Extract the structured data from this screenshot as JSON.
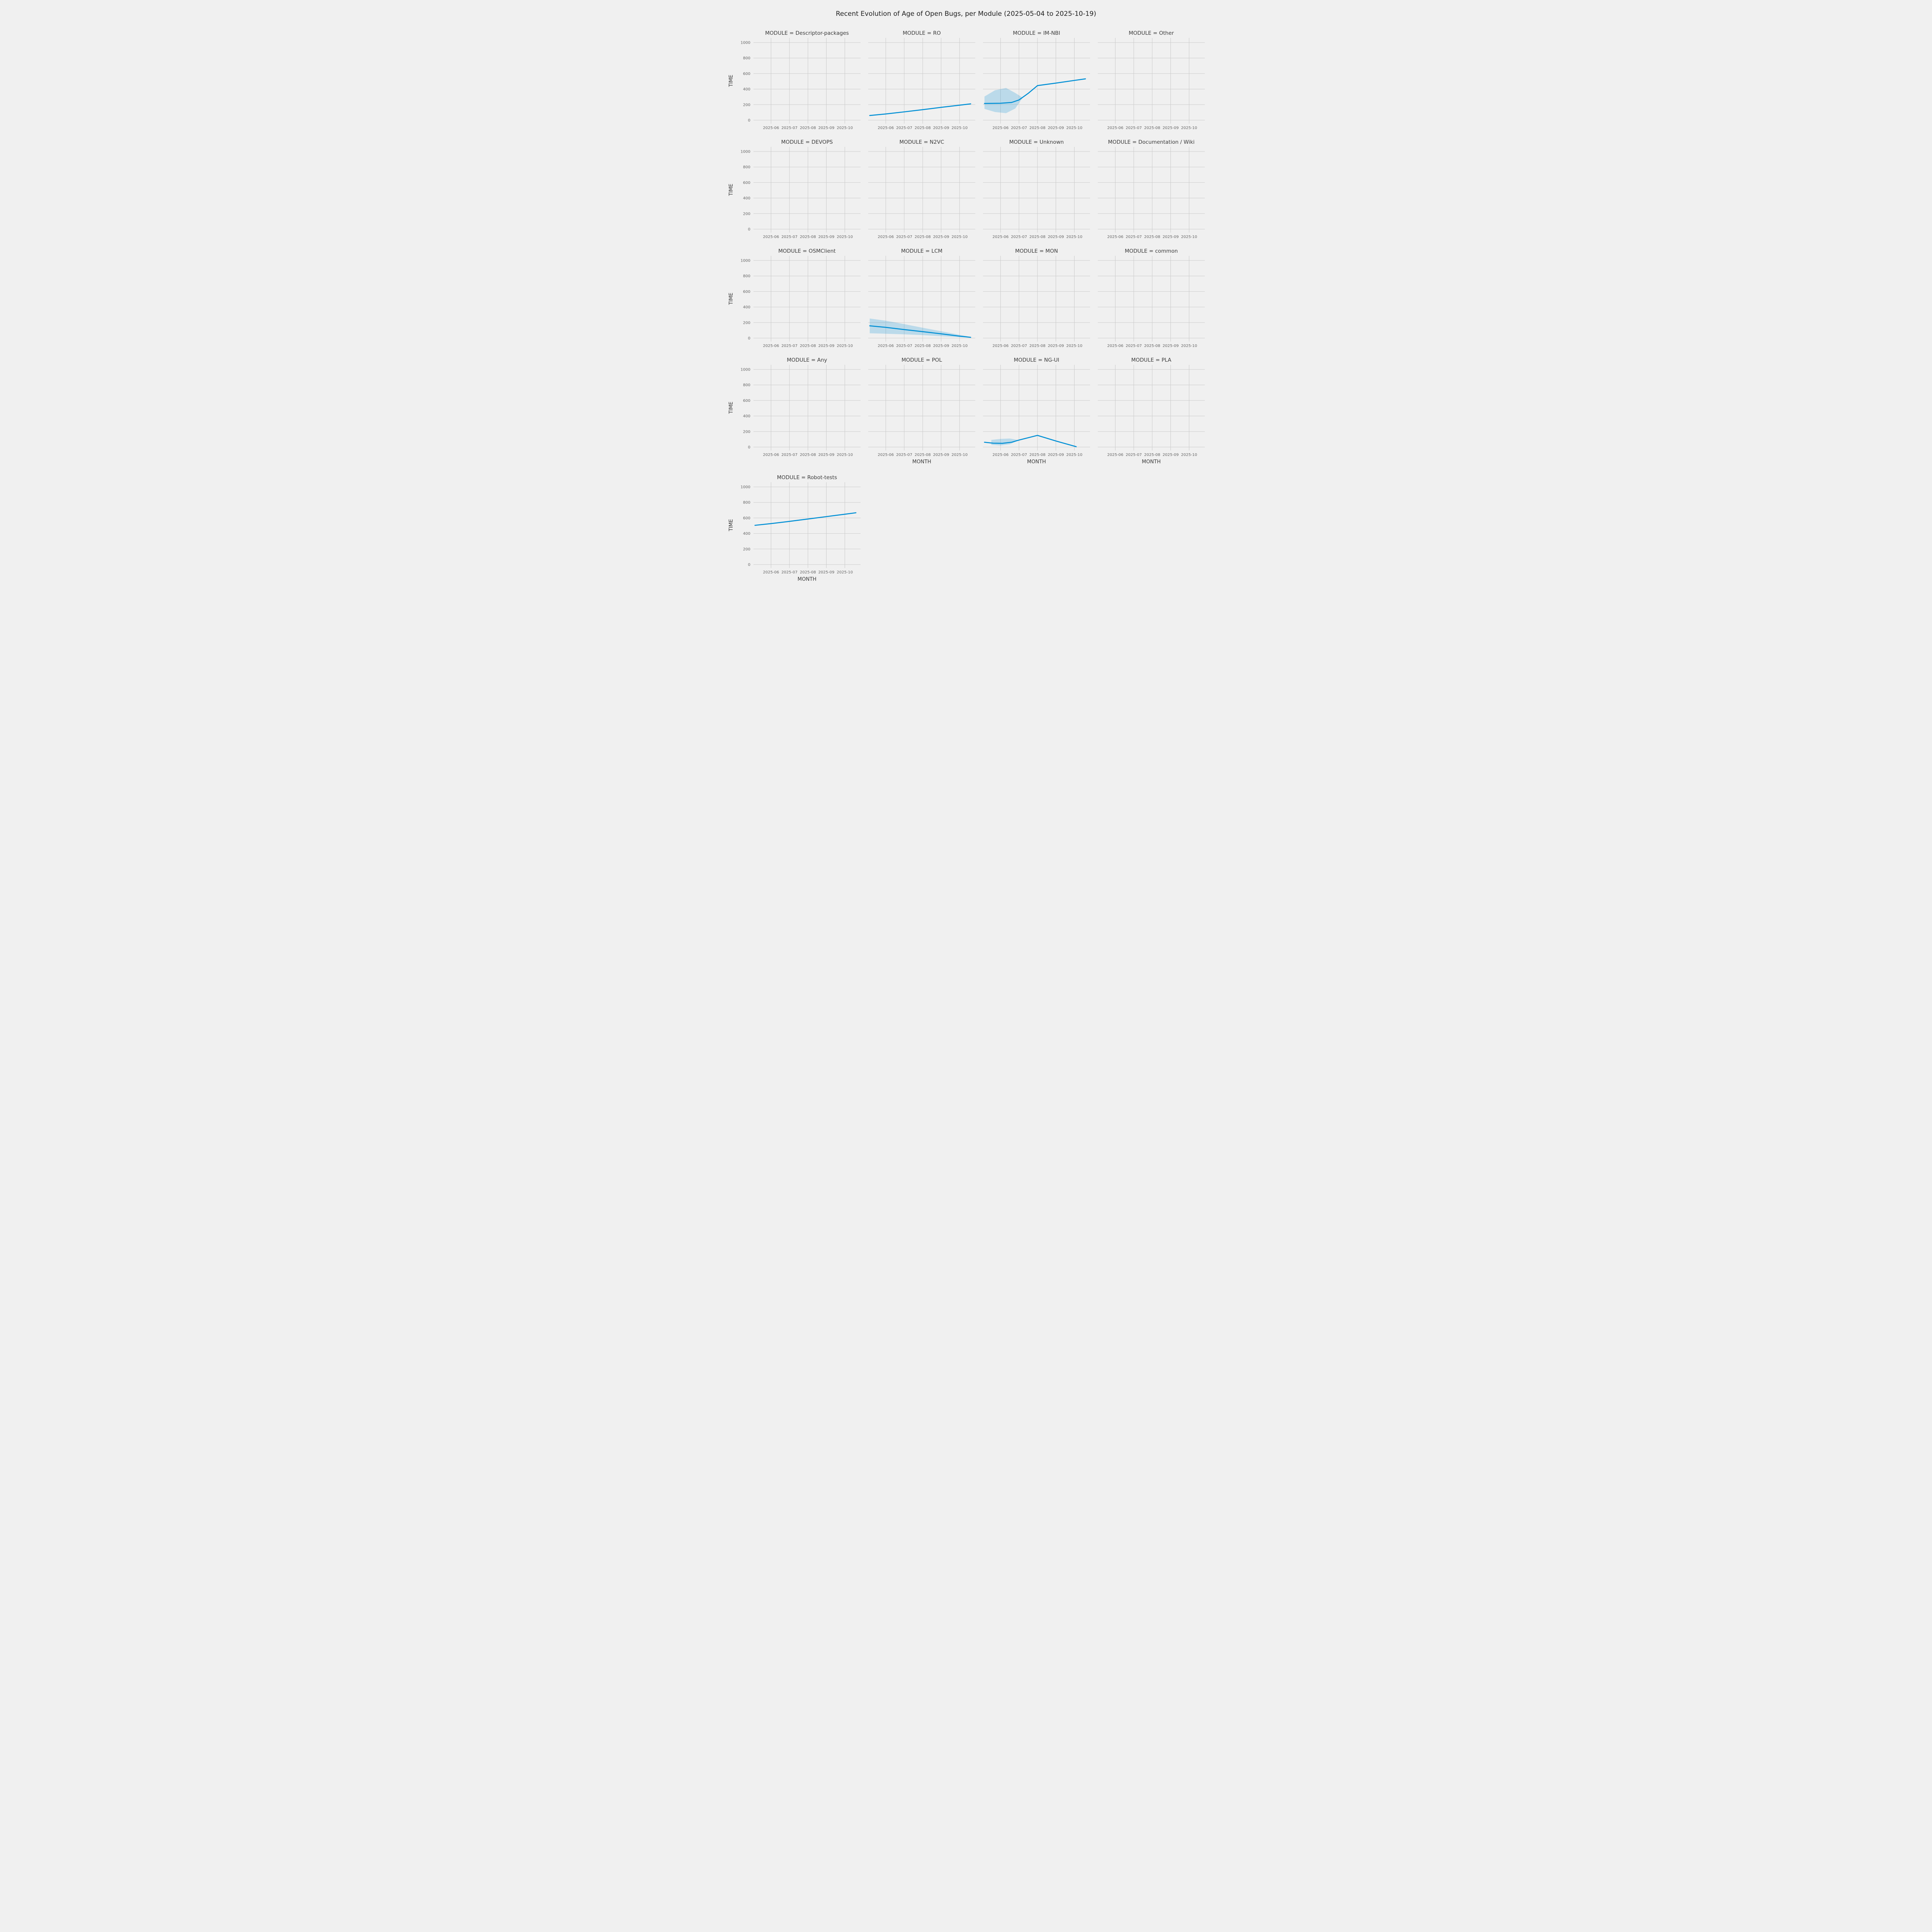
{
  "title": "Recent Evolution of Age of Open Bugs, per Module (2025-05-04 to 2025-10-19)",
  "colors": {
    "line": "#008fd5",
    "band": "#b4d8e9",
    "bg": "#f0f0f0",
    "plot_bg": "#f0f0f0",
    "grid": "#cbcbcb",
    "tick": "#666666",
    "label": "#333333"
  },
  "chart_data": {
    "type": "line",
    "axes": {
      "y_label": "TIME",
      "x_label": "MONTH",
      "y_ticks": [
        0,
        200,
        400,
        600,
        800,
        1000
      ],
      "x_ticks": [
        "2025-06",
        "2025-07",
        "2025-08",
        "2025-09",
        "2025-10"
      ],
      "x_tick_pos": [
        6,
        7,
        8,
        9,
        10
      ],
      "x_range": [
        5.05,
        10.85
      ],
      "y_range": [
        -45,
        1060
      ],
      "grid": true,
      "legend": "none"
    },
    "facets": [
      {
        "module": "Descriptor-packages",
        "title": "MODULE = Descriptor-packages",
        "line": null,
        "band": null
      },
      {
        "module": "RO",
        "title": "MODULE = RO",
        "line": [
          [
            5.13,
            60
          ],
          [
            6,
            80
          ],
          [
            7,
            107
          ],
          [
            8,
            135
          ],
          [
            9,
            165
          ],
          [
            10,
            193
          ],
          [
            10.6,
            210
          ]
        ],
        "band": null
      },
      {
        "module": "IM-NBI",
        "title": "MODULE = IM-NBI",
        "line": [
          [
            5.13,
            215
          ],
          [
            6,
            218
          ],
          [
            6.6,
            228
          ],
          [
            7,
            260
          ],
          [
            7.5,
            345
          ],
          [
            8,
            445
          ],
          [
            9,
            477
          ],
          [
            10,
            512
          ],
          [
            10.6,
            532
          ]
        ],
        "band": [
          [
            5.13,
            145,
            305
          ],
          [
            5.7,
            105,
            385
          ],
          [
            6.3,
            90,
            415
          ],
          [
            6.8,
            150,
            350
          ],
          [
            7.2,
            290,
            290
          ]
        ]
      },
      {
        "module": "Other",
        "title": "MODULE = Other",
        "line": null,
        "band": null
      },
      {
        "module": "DEVOPS",
        "title": "MODULE = DEVOPS",
        "line": null,
        "band": null
      },
      {
        "module": "N2VC",
        "title": "MODULE = N2VC",
        "line": null,
        "band": null
      },
      {
        "module": "Unknown",
        "title": "MODULE = Unknown",
        "line": null,
        "band": null
      },
      {
        "module": "Documentation / Wiki",
        "title": "MODULE = Documentation / Wiki",
        "line": null,
        "band": null
      },
      {
        "module": "OSMClient",
        "title": "MODULE = OSMClient",
        "line": null,
        "band": null
      },
      {
        "module": "LCM",
        "title": "MODULE = LCM",
        "line": [
          [
            5.13,
            158
          ],
          [
            6,
            138
          ],
          [
            7,
            110
          ],
          [
            8,
            83
          ],
          [
            9,
            55
          ],
          [
            10,
            25
          ],
          [
            10.6,
            10
          ]
        ],
        "band": [
          [
            5.13,
            62,
            252
          ],
          [
            6,
            56,
            224
          ],
          [
            7,
            48,
            180
          ],
          [
            8,
            38,
            133
          ],
          [
            9,
            24,
            88
          ],
          [
            10,
            12,
            42
          ],
          [
            10.6,
            7,
            15
          ]
        ]
      },
      {
        "module": "MON",
        "title": "MODULE = MON",
        "line": null,
        "band": null
      },
      {
        "module": "common",
        "title": "MODULE = common",
        "line": null,
        "band": null
      },
      {
        "module": "Any",
        "title": "MODULE = Any",
        "line": null,
        "band": null
      },
      {
        "module": "POL",
        "title": "MODULE = POL",
        "line": null,
        "band": null
      },
      {
        "module": "NG-UI",
        "title": "MODULE = NG-UI",
        "line": [
          [
            5.13,
            62
          ],
          [
            5.6,
            50
          ],
          [
            6.1,
            48
          ],
          [
            6.6,
            62
          ],
          [
            7,
            90
          ],
          [
            8,
            150
          ],
          [
            9,
            78
          ],
          [
            10.1,
            5
          ]
        ],
        "band": [
          [
            5.5,
            28,
            92
          ],
          [
            6,
            20,
            105
          ],
          [
            6.5,
            35,
            110
          ],
          [
            7,
            90,
            90
          ]
        ]
      },
      {
        "module": "PLA",
        "title": "MODULE = PLA",
        "line": null,
        "band": null
      },
      {
        "module": "Robot-tests",
        "title": "MODULE = Robot-tests",
        "line": [
          [
            5.13,
            505
          ],
          [
            6,
            527
          ],
          [
            7,
            556
          ],
          [
            8,
            586
          ],
          [
            9,
            617
          ],
          [
            10,
            648
          ],
          [
            10.6,
            667
          ]
        ],
        "band": null
      }
    ]
  }
}
